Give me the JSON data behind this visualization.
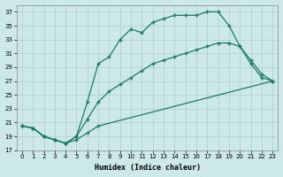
{
  "xlabel": "Humidex (Indice chaleur)",
  "ylabel": "",
  "bg_color": "#cce8e8",
  "grid_color": "#b8d8d8",
  "line_color": "#1a7a6a",
  "xlim": [
    -0.5,
    23.5
  ],
  "ylim": [
    17,
    38
  ],
  "xticks": [
    0,
    1,
    2,
    3,
    4,
    5,
    6,
    7,
    8,
    9,
    10,
    11,
    12,
    13,
    14,
    15,
    16,
    17,
    18,
    19,
    20,
    21,
    22,
    23
  ],
  "yticks": [
    17,
    19,
    21,
    23,
    25,
    27,
    29,
    31,
    33,
    35,
    37
  ],
  "curve1_x": [
    0,
    1,
    2,
    3,
    4,
    5,
    6,
    7,
    8,
    9,
    10,
    11,
    12,
    13,
    14,
    15,
    16,
    17,
    18,
    19,
    20,
    21,
    22,
    23
  ],
  "curve1_y": [
    20.5,
    20.2,
    19.0,
    18.5,
    18.0,
    19.0,
    24.0,
    29.5,
    30.5,
    33.0,
    34.5,
    34.0,
    35.5,
    36.0,
    36.5,
    36.5,
    36.5,
    37.0,
    37.0,
    35.0,
    32.0,
    29.5,
    27.5,
    27.0
  ],
  "curve2_x": [
    0,
    1,
    2,
    3,
    4,
    5,
    6,
    7,
    8,
    9,
    10,
    11,
    12,
    13,
    14,
    15,
    16,
    17,
    18,
    19,
    20,
    21,
    22,
    23
  ],
  "curve2_y": [
    20.5,
    20.2,
    19.0,
    18.5,
    18.0,
    19.0,
    21.5,
    24.0,
    25.5,
    26.5,
    27.5,
    28.5,
    29.5,
    30.0,
    30.5,
    31.0,
    31.5,
    32.0,
    32.5,
    32.5,
    32.0,
    30.0,
    28.0,
    27.0
  ],
  "curve3_x": [
    0,
    1,
    2,
    3,
    4,
    5,
    6,
    7,
    23
  ],
  "curve3_y": [
    20.5,
    20.2,
    19.0,
    18.5,
    18.0,
    18.5,
    19.5,
    20.5,
    27.0
  ]
}
